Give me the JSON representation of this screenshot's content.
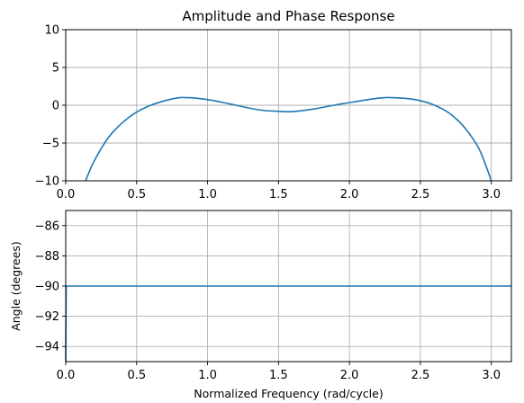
{
  "chart_data": [
    {
      "type": "line",
      "title": "Amplitude and Phase Response",
      "xlabel": "",
      "ylabel": "",
      "xlim": [
        0,
        3.14159
      ],
      "ylim": [
        -10,
        10
      ],
      "x_ticks": [
        "0.0",
        "0.5",
        "1.0",
        "1.5",
        "2.0",
        "2.5",
        "3.0"
      ],
      "y_ticks": [
        "−10",
        "−5",
        "0",
        "5",
        "10"
      ],
      "grid": true,
      "color": "#1f77b4",
      "series": [
        {
          "x": [
            0.14,
            0.2,
            0.3,
            0.4,
            0.5,
            0.6,
            0.7,
            0.8,
            0.85,
            0.9,
            1.0,
            1.1,
            1.2,
            1.3,
            1.4,
            1.5,
            1.57,
            1.65,
            1.75,
            1.85,
            1.95,
            2.05,
            2.15,
            2.25,
            2.3,
            2.4,
            2.5,
            2.6,
            2.7,
            2.8,
            2.9,
            2.95,
            3.0
          ],
          "y": [
            -10,
            -7.4,
            -4.3,
            -2.3,
            -0.9,
            0.0,
            0.6,
            1.0,
            1.0,
            0.98,
            0.75,
            0.4,
            0.0,
            -0.4,
            -0.7,
            -0.8,
            -0.85,
            -0.75,
            -0.5,
            -0.15,
            0.2,
            0.5,
            0.8,
            1.0,
            1.0,
            0.9,
            0.6,
            0.0,
            -1.0,
            -2.7,
            -5.3,
            -7.4,
            -10
          ]
        }
      ]
    },
    {
      "type": "line",
      "title": "",
      "xlabel": "Normalized Frequency (rad/cycle)",
      "ylabel": "Angle (degrees)",
      "xlim": [
        0,
        3.14159
      ],
      "ylim": [
        -95,
        -85
      ],
      "x_ticks": [
        "0.0",
        "0.5",
        "1.0",
        "1.5",
        "2.0",
        "2.5",
        "3.0"
      ],
      "y_ticks": [
        "−94",
        "−92",
        "−90",
        "−88",
        "−86"
      ],
      "grid": true,
      "color": "#1f77b4",
      "series": [
        {
          "x": [
            0.0,
            0.003,
            3.14159
          ],
          "y": [
            -95,
            -90,
            -90
          ]
        }
      ]
    }
  ]
}
